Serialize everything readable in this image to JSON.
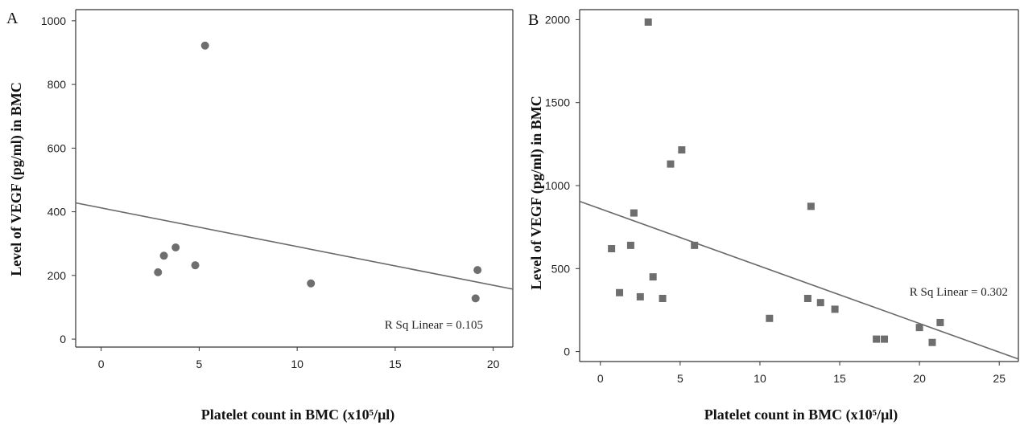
{
  "chart_data": [
    {
      "panel": "A",
      "type": "scatter",
      "xlabel": "Platelet count in BMC (x10⁵/μl)",
      "ylabel": "Level of VEGF (pg/ml) in BMC",
      "xlim": [
        -1.3,
        21
      ],
      "ylim": [
        -25,
        1035
      ],
      "xticks": [
        0,
        5,
        10,
        15,
        20
      ],
      "yticks": [
        0,
        200,
        400,
        600,
        800,
        1000
      ],
      "marker": "circle",
      "points": [
        {
          "x": 2.9,
          "y": 210
        },
        {
          "x": 3.2,
          "y": 262
        },
        {
          "x": 3.8,
          "y": 288
        },
        {
          "x": 4.8,
          "y": 232
        },
        {
          "x": 5.3,
          "y": 922
        },
        {
          "x": 10.7,
          "y": 175
        },
        {
          "x": 19.2,
          "y": 217
        },
        {
          "x": 19.1,
          "y": 128
        }
      ],
      "fit_line": {
        "x": [
          -1.3,
          21
        ],
        "y": [
          428,
          157
        ]
      },
      "annotation": "R Sq Linear = 0.105",
      "grid": false
    },
    {
      "panel": "B",
      "type": "scatter",
      "xlabel": "Platelet count in BMC (x10⁵/μl)",
      "ylabel": "Level of VEGF (pg/ml) in BMC",
      "xlim": [
        -1.3,
        26.2
      ],
      "ylim": [
        -60,
        2060
      ],
      "xticks": [
        0,
        5,
        10,
        15,
        20,
        25
      ],
      "yticks": [
        0,
        500,
        1000,
        1500,
        2000
      ],
      "marker": "square",
      "points": [
        {
          "x": 3.0,
          "y": 1985
        },
        {
          "x": 5.1,
          "y": 1215
        },
        {
          "x": 4.4,
          "y": 1130
        },
        {
          "x": 13.2,
          "y": 875
        },
        {
          "x": 2.1,
          "y": 835
        },
        {
          "x": 1.9,
          "y": 640
        },
        {
          "x": 5.9,
          "y": 640
        },
        {
          "x": 0.7,
          "y": 620
        },
        {
          "x": 3.3,
          "y": 450
        },
        {
          "x": 1.2,
          "y": 355
        },
        {
          "x": 2.5,
          "y": 330
        },
        {
          "x": 3.9,
          "y": 320
        },
        {
          "x": 13.0,
          "y": 320
        },
        {
          "x": 13.8,
          "y": 295
        },
        {
          "x": 14.7,
          "y": 255
        },
        {
          "x": 10.6,
          "y": 200
        },
        {
          "x": 21.3,
          "y": 175
        },
        {
          "x": 20.0,
          "y": 145
        },
        {
          "x": 17.3,
          "y": 75
        },
        {
          "x": 17.8,
          "y": 75
        },
        {
          "x": 20.8,
          "y": 55
        }
      ],
      "fit_line": {
        "x": [
          -1.3,
          26.2
        ],
        "y": [
          905,
          -45
        ]
      },
      "annotation": "R Sq Linear = 0.302",
      "grid": false
    }
  ]
}
